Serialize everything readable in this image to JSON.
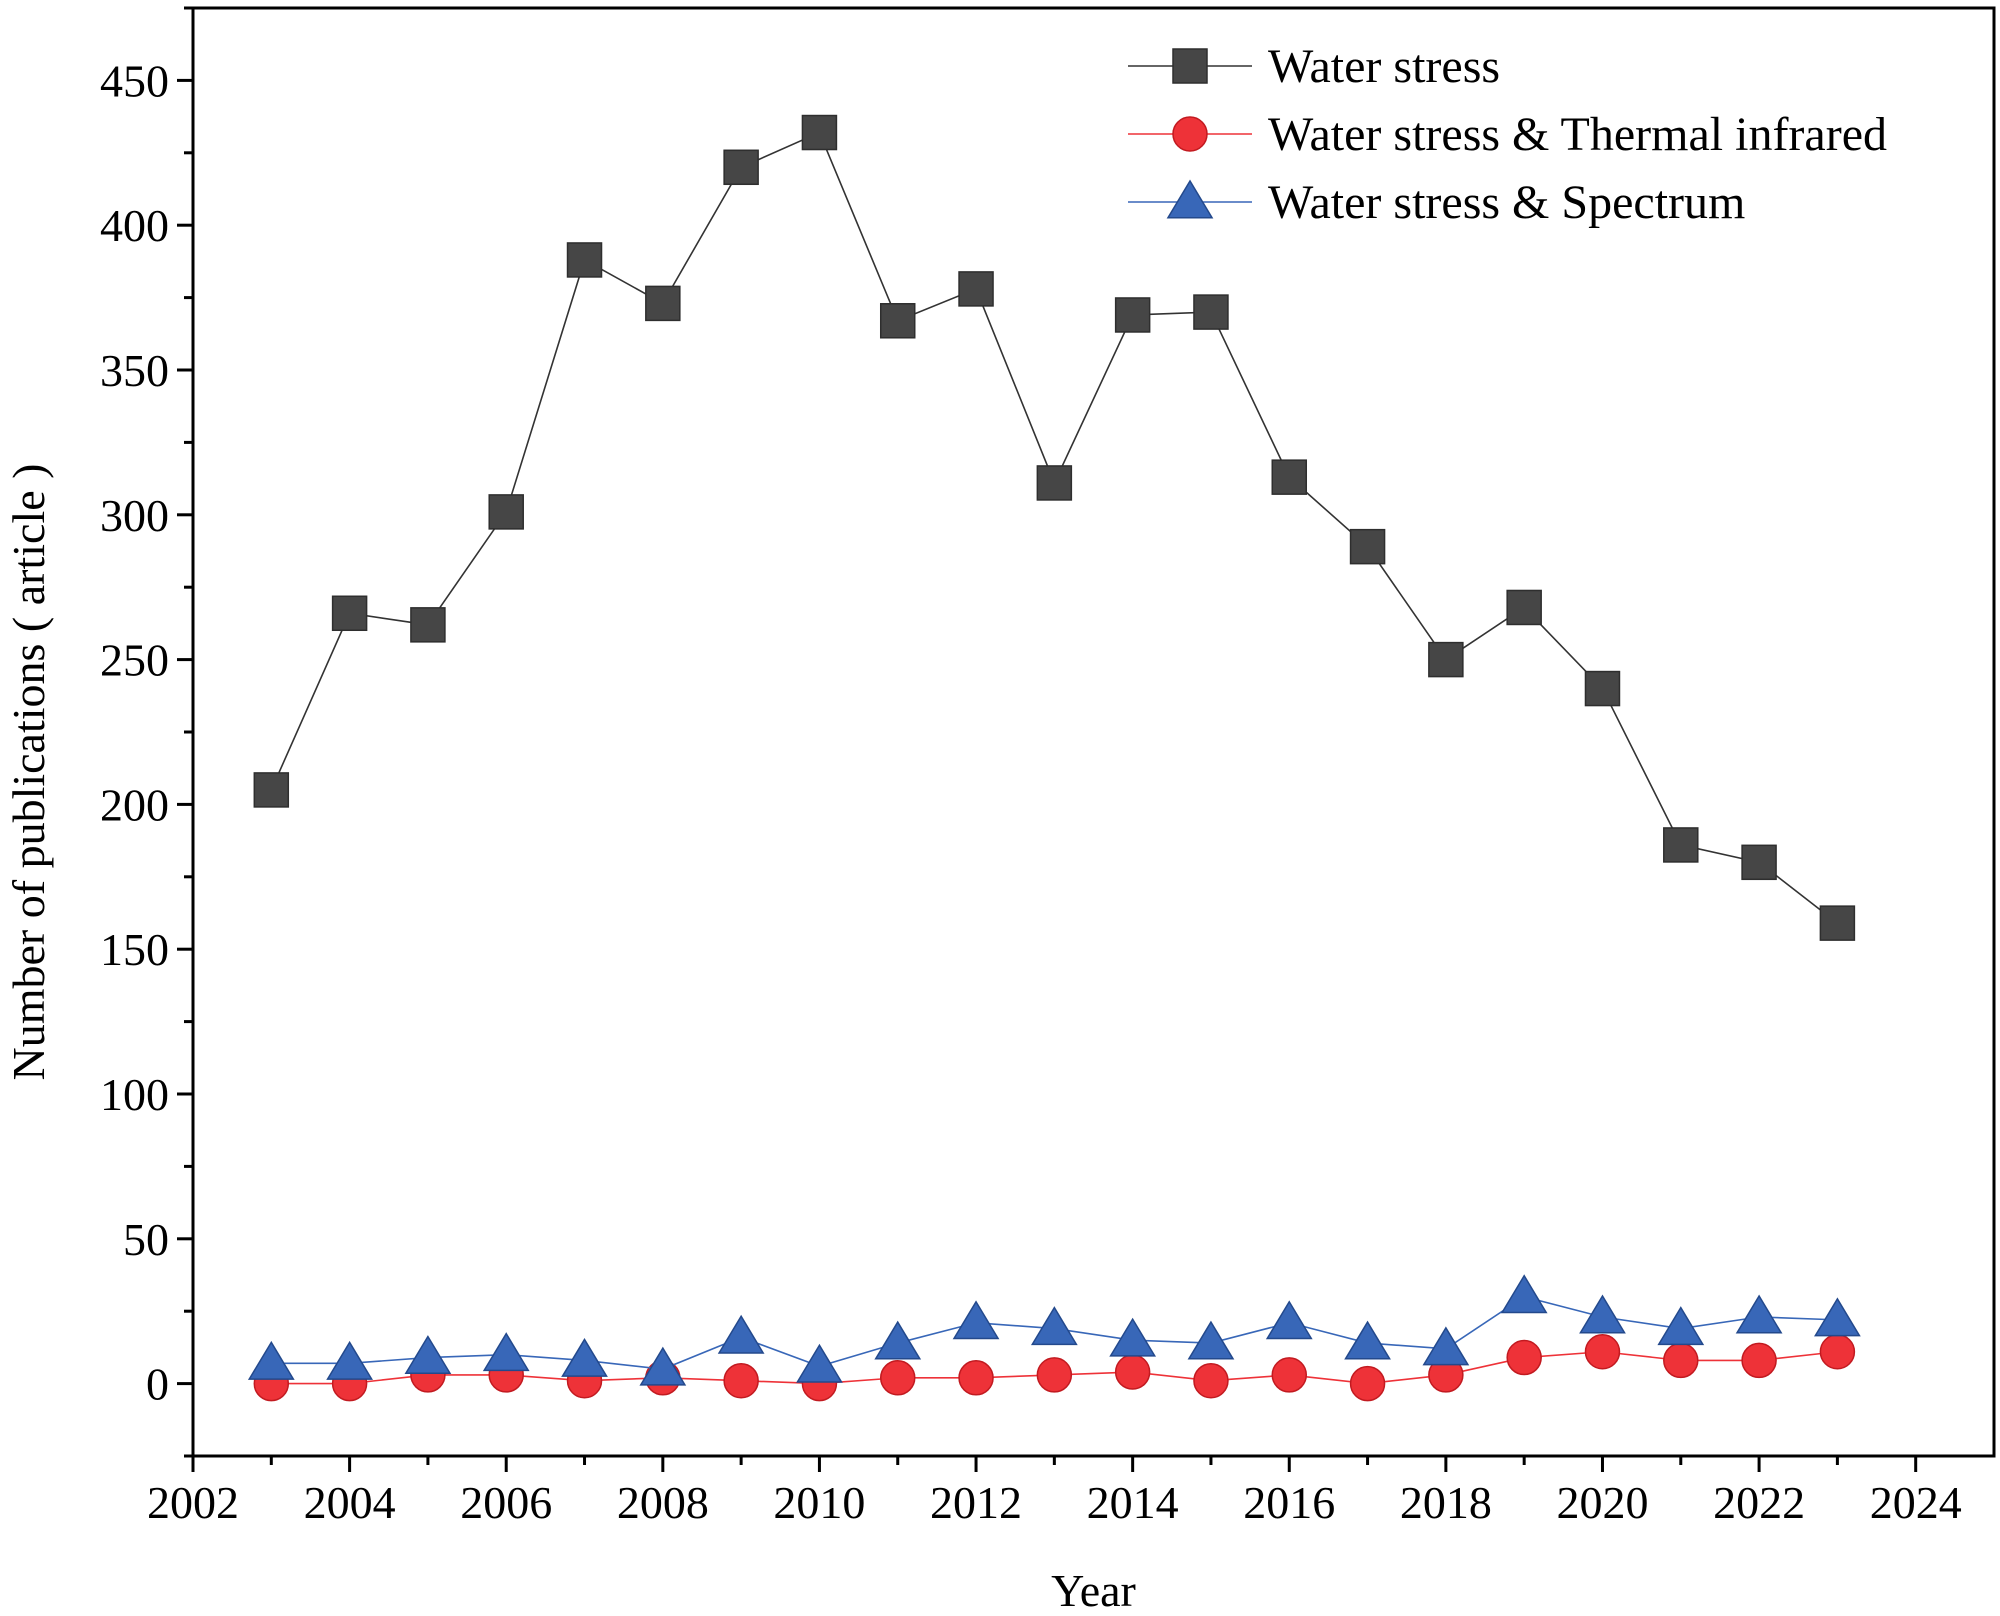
{
  "chart_data": {
    "type": "line",
    "title": "",
    "xlabel": "Year",
    "ylabel": "Number of publications ( article )",
    "xlim": [
      2002,
      2025
    ],
    "ylim": [
      -25,
      475
    ],
    "x_ticks": [
      2002,
      2004,
      2006,
      2008,
      2010,
      2012,
      2014,
      2016,
      2018,
      2020,
      2022,
      2024
    ],
    "y_ticks": [
      0,
      50,
      100,
      150,
      200,
      250,
      300,
      350,
      400,
      450
    ],
    "grid": false,
    "legend_position": "top-right",
    "x": [
      2003,
      2004,
      2005,
      2006,
      2007,
      2008,
      2009,
      2010,
      2011,
      2012,
      2013,
      2014,
      2015,
      2016,
      2017,
      2018,
      2019,
      2020,
      2021,
      2022,
      2023
    ],
    "series": [
      {
        "name": "Water stress",
        "marker": "square",
        "color": "#464646",
        "line_color": "#333333",
        "values": [
          205,
          266,
          262,
          301,
          388,
          373,
          420,
          432,
          367,
          378,
          311,
          369,
          370,
          313,
          289,
          250,
          268,
          240,
          186,
          180,
          159
        ]
      },
      {
        "name": "Water stress & Thermal infrared",
        "marker": "circle",
        "color": "#ee3238",
        "line_color": "#ee3238",
        "values": [
          0,
          0,
          3,
          3,
          1,
          2,
          1,
          0,
          2,
          2,
          3,
          4,
          1,
          3,
          0,
          3,
          9,
          11,
          8,
          8,
          11
        ]
      },
      {
        "name": "Water stress & Spectrum",
        "marker": "triangle",
        "color": "#3867b8",
        "line_color": "#3867b8",
        "values": [
          7,
          7,
          9,
          10,
          8,
          5,
          16,
          6,
          14,
          21,
          19,
          15,
          14,
          21,
          14,
          12,
          30,
          23,
          19,
          23,
          22
        ]
      }
    ]
  }
}
